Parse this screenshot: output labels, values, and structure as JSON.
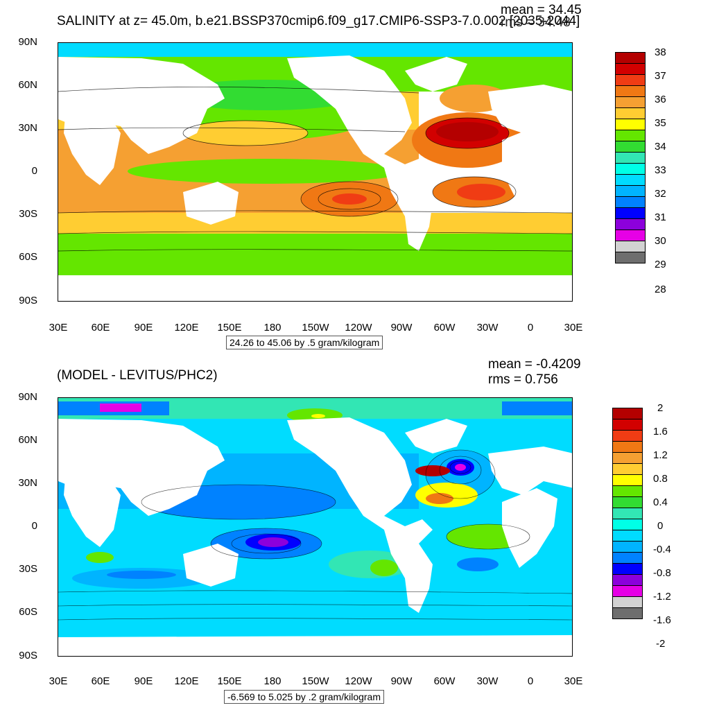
{
  "top": {
    "title": "SALINITY at z=  45.0m, b.e21.BSSP370cmip6.f09_g17.CMIP6-SSP3-7.0.002 [2035-2044]",
    "mean": "mean = 34.45",
    "rms": "rms = 34.48",
    "contour_note": "24.26 to 45.06 by .5 gram/kilogram",
    "colorbar_labels": [
      "38",
      "37",
      "36",
      "35",
      "34",
      "33",
      "32",
      "31",
      "30",
      "29",
      "28"
    ],
    "colorbar_colors": [
      "#b40000",
      "#d20000",
      "#f03c14",
      "#f07814",
      "#f5a032",
      "#ffcd32",
      "#ffff00",
      "#64e600",
      "#32dc32",
      "#32e6b4",
      "#00ffe6",
      "#00dcff",
      "#00b4ff",
      "#0082ff",
      "#0000ff",
      "#8c00dc",
      "#e600e6",
      "#d2d2d2",
      "#6e6e6e"
    ]
  },
  "bottom": {
    "title": "(MODEL - LEVITUS/PHC2)",
    "mean": "mean = -0.4209",
    "rms": "rms = 0.756",
    "contour_note": "-6.569 to 5.025 by .2 gram/kilogram",
    "colorbar_labels": [
      "2",
      "1.6",
      "1.2",
      "0.8",
      "0.4",
      "0",
      "-0.4",
      "-0.8",
      "-1.2",
      "-1.6",
      "-2"
    ],
    "colorbar_colors": [
      "#b40000",
      "#d20000",
      "#f03c14",
      "#f07814",
      "#f5a032",
      "#ffcd32",
      "#ffff00",
      "#64e600",
      "#32dc32",
      "#32e6b4",
      "#00ffe6",
      "#00dcff",
      "#00b4ff",
      "#0082ff",
      "#0000ff",
      "#8c00dc",
      "#e600e6",
      "#d2d2d2",
      "#6e6e6e"
    ]
  },
  "axes": {
    "lat_labels": [
      "90N",
      "60N",
      "30N",
      "0",
      "30S",
      "60S",
      "90S"
    ],
    "lon_labels": [
      "30E",
      "60E",
      "90E",
      "120E",
      "150E",
      "180",
      "150W",
      "120W",
      "90W",
      "60W",
      "30W",
      "0",
      "30E"
    ]
  },
  "colors": {
    "land": "#ffffff",
    "salty": "#b40000",
    "fresh": "#0000ff"
  }
}
